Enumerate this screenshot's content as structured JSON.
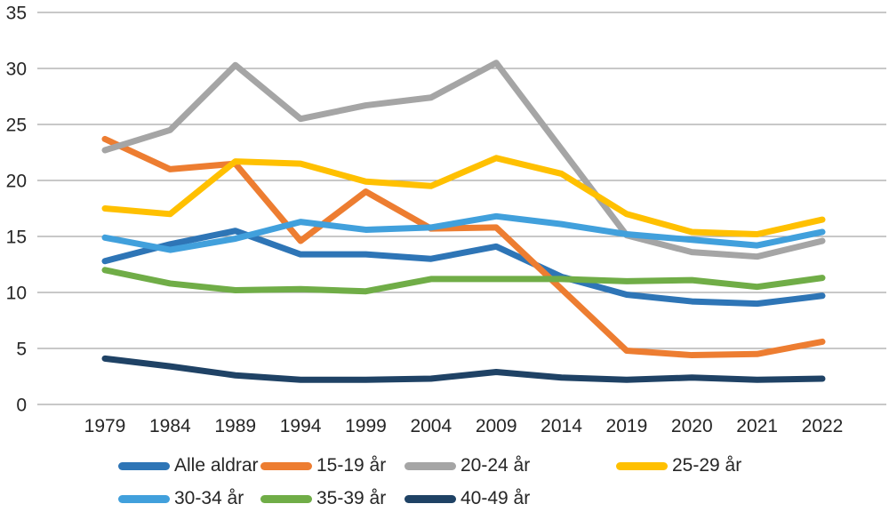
{
  "chart_data": {
    "type": "line",
    "title": "",
    "xlabel": "",
    "ylabel": "",
    "ylim": [
      0,
      35
    ],
    "yticks": [
      0,
      5,
      10,
      15,
      20,
      25,
      30,
      35
    ],
    "grid": "horizontal",
    "legend_position": "bottom",
    "categories": [
      "1979",
      "1984",
      "1989",
      "1994",
      "1999",
      "2004",
      "2009",
      "2014",
      "2019",
      "2020",
      "2021",
      "2022"
    ],
    "series": [
      {
        "name": "Alle aldrar",
        "color": "#2E75B6",
        "values": [
          12.8,
          14.3,
          15.5,
          13.4,
          13.4,
          13.0,
          14.1,
          11.4,
          9.8,
          9.2,
          9.0,
          9.7
        ]
      },
      {
        "name": "15-19 år",
        "color": "#ED7D31",
        "values": [
          23.7,
          21.0,
          21.5,
          14.6,
          19.0,
          15.7,
          15.8,
          10.3,
          4.8,
          4.4,
          4.5,
          5.6
        ]
      },
      {
        "name": "20-24 år",
        "color": "#A5A5A5",
        "values": [
          22.7,
          24.5,
          30.3,
          25.5,
          26.7,
          27.4,
          30.5,
          22.8,
          15.1,
          13.6,
          13.2,
          14.6
        ]
      },
      {
        "name": "25-29 år",
        "color": "#FFC000",
        "values": [
          17.5,
          17.0,
          21.7,
          21.5,
          19.9,
          19.5,
          22.0,
          20.6,
          17.0,
          15.4,
          15.2,
          16.5
        ]
      },
      {
        "name": "30-34 år",
        "color": "#41A0DC",
        "values": [
          14.9,
          13.8,
          14.8,
          16.3,
          15.6,
          15.8,
          16.8,
          16.1,
          15.2,
          14.7,
          14.2,
          15.4
        ]
      },
      {
        "name": "35-39 år",
        "color": "#70AD47",
        "values": [
          12.0,
          10.8,
          10.2,
          10.3,
          10.1,
          11.2,
          11.2,
          11.2,
          11.0,
          11.1,
          10.5,
          11.3
        ]
      },
      {
        "name": "40-49 år",
        "color": "#1F4265",
        "values": [
          4.1,
          3.4,
          2.6,
          2.2,
          2.2,
          2.3,
          2.9,
          2.4,
          2.2,
          2.4,
          2.2,
          2.3
        ]
      }
    ],
    "gridline_color": "#A6A6A6",
    "text_color": "#262626"
  }
}
